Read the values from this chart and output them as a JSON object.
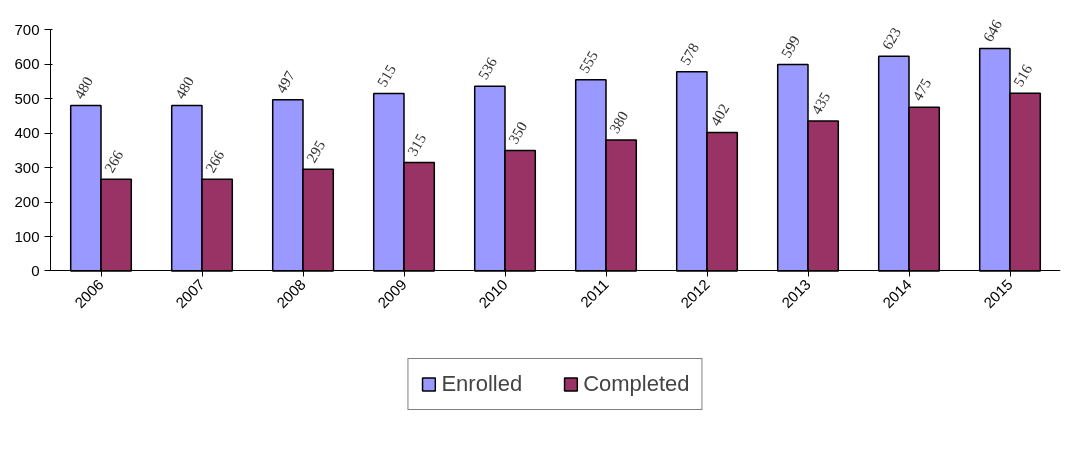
{
  "chart_data": {
    "type": "bar",
    "categories": [
      "2006",
      "2007",
      "2008",
      "2009",
      "2010",
      "2011",
      "2012",
      "2013",
      "2014",
      "2015"
    ],
    "series": [
      {
        "name": "Enrolled",
        "color": "#9999ff",
        "values": [
          480,
          480,
          497,
          515,
          536,
          555,
          578,
          599,
          623,
          646
        ]
      },
      {
        "name": "Completed",
        "color": "#993366",
        "values": [
          266,
          266,
          295,
          315,
          350,
          380,
          402,
          435,
          475,
          516
        ]
      }
    ],
    "ylim": [
      0,
      700
    ],
    "yticks": [
      0,
      100,
      200,
      300,
      400,
      500,
      600,
      700
    ],
    "grid": false,
    "legend": "bottom",
    "data_labels": true
  }
}
